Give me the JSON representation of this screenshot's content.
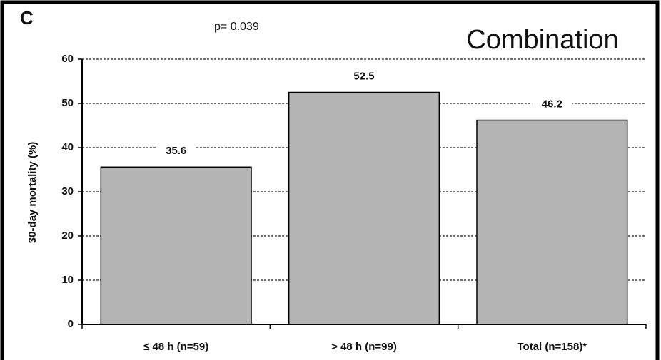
{
  "chart_data": {
    "type": "bar",
    "panel_label": "C",
    "annotation": "p= 0.039",
    "title": "Combination",
    "y_label": "30-day mortality (%)",
    "categories": [
      "≤ 48 h (n=59)",
      "> 48 h (n=99)",
      "Total (n=158)*"
    ],
    "values": [
      35.6,
      52.5,
      46.2
    ],
    "color": "#b4b4b4",
    "ylim": [
      0,
      60
    ],
    "yticks": [
      0,
      10,
      20,
      30,
      40,
      50,
      60
    ],
    "grid": true
  }
}
